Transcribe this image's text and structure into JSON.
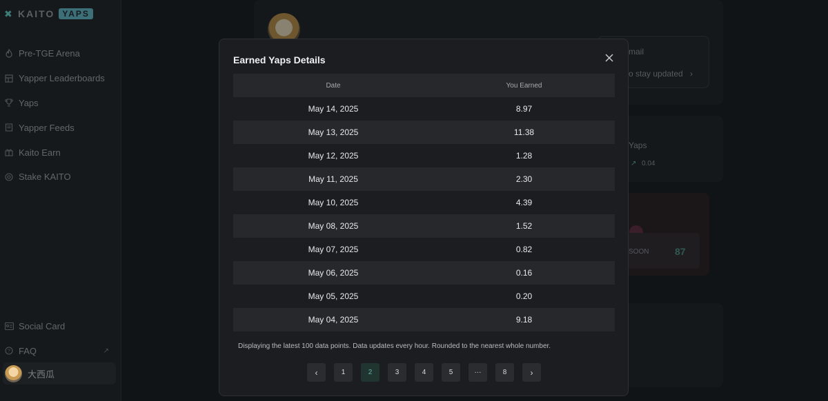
{
  "brand": {
    "name": "KAITO",
    "badge": "YAPS"
  },
  "sidebar": {
    "items": [
      {
        "label": "Pre-TGE Arena",
        "icon": "flame-icon"
      },
      {
        "label": "Yapper Leaderboards",
        "icon": "grid-icon"
      },
      {
        "label": "Yaps",
        "icon": "trophy-icon"
      },
      {
        "label": "Yapper Feeds",
        "icon": "feed-icon"
      },
      {
        "label": "Kaito Earn",
        "icon": "gift-icon"
      },
      {
        "label": "Stake KAITO",
        "icon": "stake-icon"
      }
    ],
    "bottom": [
      {
        "label": "Social Card",
        "icon": "id-card-icon"
      },
      {
        "label": "FAQ",
        "icon": "help-icon"
      }
    ],
    "user": {
      "name": "大西瓜"
    }
  },
  "background": {
    "email_label": "mail",
    "stay_updated": "o stay updated",
    "yaps_label": "Yaps",
    "yaps_delta": "0.04",
    "soon_label": "SOON",
    "score": "87"
  },
  "modal": {
    "title": "Earned Yaps Details",
    "columns": {
      "date": "Date",
      "earned": "You Earned"
    },
    "rows": [
      {
        "date": "May 14, 2025",
        "earned": "8.97"
      },
      {
        "date": "May 13, 2025",
        "earned": "11.38"
      },
      {
        "date": "May 12, 2025",
        "earned": "1.28"
      },
      {
        "date": "May 11, 2025",
        "earned": "2.30"
      },
      {
        "date": "May 10, 2025",
        "earned": "4.39"
      },
      {
        "date": "May 08, 2025",
        "earned": "1.52"
      },
      {
        "date": "May 07, 2025",
        "earned": "0.82"
      },
      {
        "date": "May 06, 2025",
        "earned": "0.16"
      },
      {
        "date": "May 05, 2025",
        "earned": "0.20"
      },
      {
        "date": "May 04, 2025",
        "earned": "9.18"
      }
    ],
    "note": "Displaying the latest 100 data points. Data updates every hour. Rounded to the nearest whole number.",
    "pagination": {
      "prev": "‹",
      "pages": [
        "1",
        "2",
        "3",
        "4",
        "5",
        "···",
        "8"
      ],
      "current": "2",
      "next": "›"
    }
  },
  "colors": {
    "accent": "#5fb7a1",
    "modal_bg": "#1c1d20",
    "row_alt": "#26282c"
  }
}
